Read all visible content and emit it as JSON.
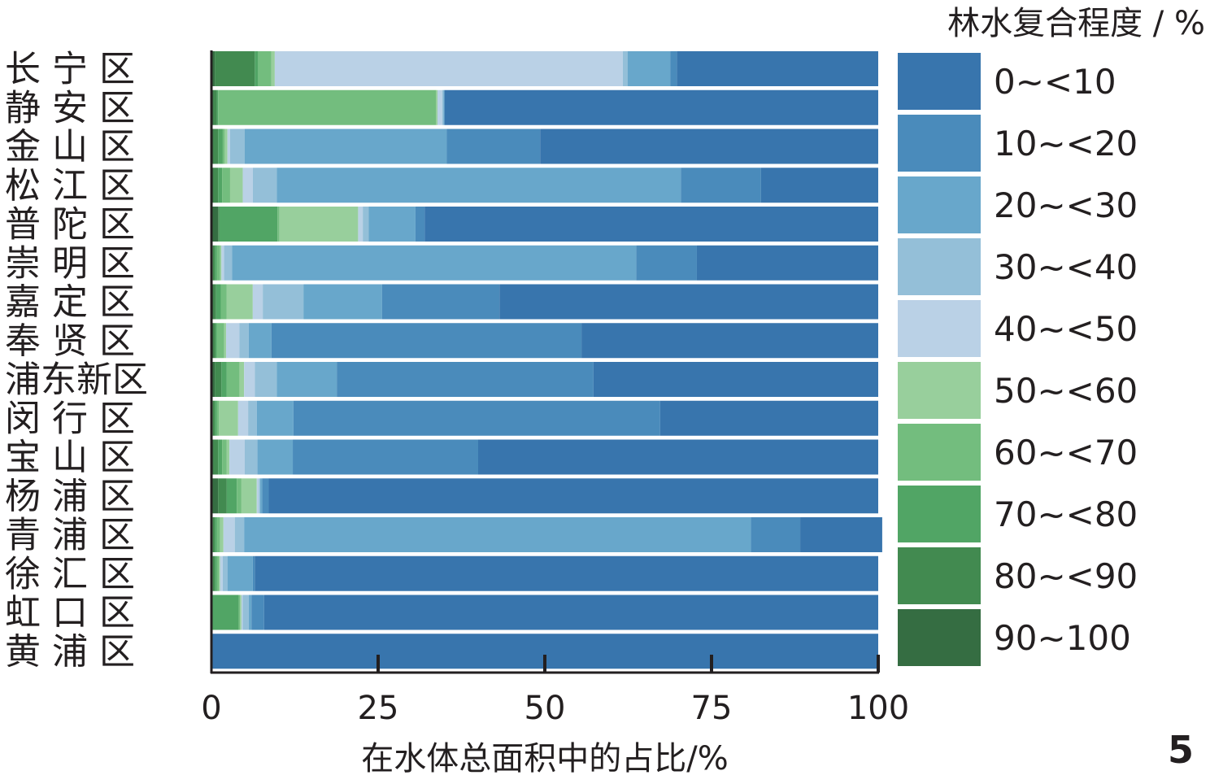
{
  "panel_number": "5",
  "chart_data": {
    "type": "bar",
    "orientation": "horizontal",
    "stacked": true,
    "xlabel": "在水体总面积中的占比/%",
    "xlim": [
      0,
      100
    ],
    "xticks": [
      "0",
      "25",
      "50",
      "75",
      "100"
    ],
    "legend_title": "林水复合程度 / %",
    "legend_placement": "right",
    "categories": [
      "长 宁 区",
      "静 安 区",
      "金 山 区",
      "松 江 区",
      "普 陀 区",
      "崇 明 区",
      "嘉 定 区",
      "奉 贤 区",
      "浦东新区",
      "闵 行 区",
      "宝 山 区",
      "杨 浦 区",
      "青 浦 区",
      "徐 汇 区",
      "虹 口 区",
      "黄 浦 区"
    ],
    "series": [
      {
        "name": "90~100",
        "color": "#356d42",
        "values": [
          0.5,
          0.3,
          0.3,
          0.3,
          1.0,
          0.2,
          0.3,
          0.3,
          0.5,
          0.2,
          0.3,
          1.0,
          0.2,
          0.2,
          0,
          0
        ]
      },
      {
        "name": "80~<90",
        "color": "#428a50",
        "values": [
          6.0,
          0.5,
          0.7,
          0.7,
          0.2,
          0.3,
          0.4,
          0.3,
          1.0,
          0.3,
          0.7,
          1.3,
          0.3,
          0.3,
          0,
          0
        ]
      },
      {
        "name": "70~<80",
        "color": "#51a565",
        "values": [
          0.5,
          0.2,
          0.7,
          0.6,
          8.7,
          0.3,
          0.7,
          0.2,
          0.8,
          0.3,
          0.6,
          1.5,
          0.3,
          0.3,
          4.1,
          0
        ]
      },
      {
        "name": "60~<70",
        "color": "#73bd7e",
        "values": [
          2.0,
          32.7,
          0.3,
          1.2,
          0.3,
          0.5,
          0.9,
          1.1,
          1.9,
          0.3,
          0.7,
          0.7,
          0.5,
          0.3,
          0.2,
          0
        ]
      },
      {
        "name": "50~<60",
        "color": "#98cf9c",
        "values": [
          0.5,
          0.2,
          0.4,
          1.9,
          11.8,
          0.2,
          3.9,
          0.3,
          0.7,
          2.9,
          0.4,
          2.3,
          0.5,
          0.2,
          0.2,
          0
        ]
      },
      {
        "name": "40~<50",
        "color": "#bad1e6",
        "values": [
          52.2,
          0.7,
          0.4,
          1.5,
          0.7,
          0.4,
          1.5,
          2.0,
          1.6,
          1.5,
          2.3,
          0.3,
          1.7,
          0.4,
          0.2,
          0
        ]
      },
      {
        "name": "30~<40",
        "color": "#94bfd8",
        "values": [
          0.7,
          0.2,
          2.2,
          3.6,
          0.9,
          1.2,
          6.1,
          1.4,
          3.3,
          1.3,
          1.9,
          0.2,
          1.4,
          0.7,
          0.9,
          0
        ]
      },
      {
        "name": "20~<30",
        "color": "#68a7cb",
        "values": [
          6.4,
          0.1,
          30.3,
          60.6,
          7.0,
          60.6,
          11.8,
          3.4,
          9.0,
          5.5,
          5.3,
          0.3,
          76.0,
          3.8,
          0.4,
          0
        ]
      },
      {
        "name": "10~<20",
        "color": "#4a8bbb",
        "values": [
          1.0,
          0.1,
          14.0,
          12.0,
          1.4,
          9.1,
          17.6,
          46.5,
          38.5,
          55.0,
          27.8,
          1.0,
          7.4,
          0.3,
          1.9,
          0
        ]
      },
      {
        "name": "0~<10",
        "color": "#3875ad",
        "values": [
          30.2,
          65.0,
          50.7,
          17.6,
          68.0,
          27.2,
          56.8,
          44.5,
          42.7,
          32.7,
          60.0,
          91.4,
          12.3,
          93.5,
          92.1,
          100
        ]
      }
    ]
  }
}
